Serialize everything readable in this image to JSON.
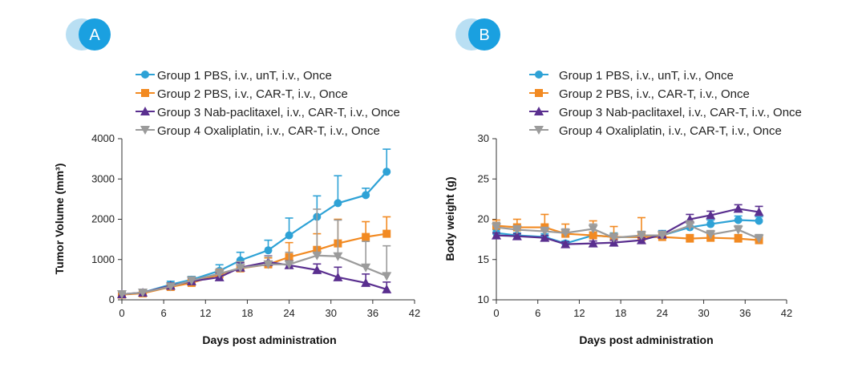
{
  "colors": {
    "group1": "#2ea2d6",
    "group2": "#f28a22",
    "group3": "#5a2f8f",
    "group4": "#9b9b9b",
    "badge_main": "#1aa0e0",
    "badge_shadow": "#b9dff3"
  },
  "panels": [
    {
      "badge": "A",
      "legend": [
        "Group 1 PBS, i.v., unT, i.v., Once",
        "Group 2 PBS, i.v., CAR-T, i.v., Once",
        "Group 3 Nab-paclitaxel, i.v., CAR-T, i.v., Once",
        "Group 4 Oxaliplatin, i.v., CAR-T, i.v., Once"
      ]
    },
    {
      "badge": "B",
      "legend": [
        "Group 1 PBS, i.v., unT, i.v., Once",
        "Group 2 PBS, i.v., CAR-T, i.v., Once",
        "Group 3 Nab-paclitaxel, i.v., CAR-T, i.v., Once",
        "Group 4 Oxaliplatin, i.v., CAR-T, i.v., Once"
      ]
    }
  ],
  "chart_data": [
    {
      "type": "line",
      "title": "",
      "xlabel": "Days post administration",
      "ylabel": "Tumor Volume (mm³)",
      "xlim": [
        0,
        42
      ],
      "ylim": [
        0,
        4000
      ],
      "xticks": [
        0,
        6,
        12,
        18,
        24,
        30,
        36,
        42
      ],
      "yticks": [
        0,
        1000,
        2000,
        3000,
        4000
      ],
      "x": [
        0,
        3,
        7,
        10,
        14,
        17,
        21,
        24,
        28,
        31,
        35,
        38
      ],
      "series": [
        {
          "name": "Group 1 PBS, i.v., unT, i.v., Once",
          "marker": "circle",
          "colorKey": "group1",
          "values": [
            130,
            180,
            380,
            500,
            720,
            980,
            1230,
            1600,
            2060,
            2400,
            2600,
            3180
          ],
          "errors": [
            60,
            70,
            80,
            80,
            150,
            200,
            250,
            430,
            520,
            680,
            170,
            560
          ]
        },
        {
          "name": "Group 2 PBS, i.v., CAR-T, i.v., Once",
          "marker": "square",
          "colorKey": "group2",
          "values": [
            130,
            160,
            320,
            420,
            630,
            780,
            880,
            1060,
            1240,
            1400,
            1560,
            1640
          ],
          "errors": [
            50,
            60,
            70,
            80,
            110,
            140,
            160,
            360,
            400,
            600,
            380,
            420
          ]
        },
        {
          "name": "Group 3 Nab-paclitaxel, i.v., CAR-T, i.v., Once",
          "marker": "triangle-up",
          "colorKey": "group3",
          "values": [
            140,
            180,
            350,
            460,
            560,
            800,
            940,
            860,
            740,
            560,
            420,
            260
          ],
          "errors": [
            50,
            60,
            70,
            80,
            100,
            120,
            150,
            110,
            150,
            250,
            220,
            180
          ]
        },
        {
          "name": "Group 4 Oxaliplatin, i.v., CAR-T, i.v., Once",
          "marker": "triangle-down",
          "colorKey": "group4",
          "values": [
            140,
            180,
            330,
            480,
            650,
            790,
            880,
            880,
            1100,
            1080,
            800,
            590
          ],
          "errors": [
            50,
            60,
            70,
            90,
            120,
            160,
            200,
            300,
            1150,
            900,
            650,
            750
          ]
        }
      ]
    },
    {
      "type": "line",
      "title": "",
      "xlabel": "Days post administration",
      "ylabel": "Body weight (g)",
      "xlim": [
        0,
        42
      ],
      "ylim": [
        10,
        30
      ],
      "xticks": [
        0,
        6,
        12,
        18,
        24,
        30,
        36,
        42
      ],
      "yticks": [
        10,
        15,
        20,
        25,
        30
      ],
      "x": [
        0,
        3,
        7,
        10,
        14,
        17,
        21,
        24,
        28,
        31,
        35,
        38
      ],
      "series": [
        {
          "name": "Group 1 PBS, i.v., unT, i.v., Once",
          "marker": "circle",
          "colorKey": "group1",
          "values": [
            18.3,
            18.0,
            17.8,
            17.0,
            18.0,
            17.8,
            17.8,
            18.0,
            19.0,
            19.4,
            19.9,
            19.8
          ],
          "errors": [
            0.4,
            0.3,
            0.4,
            0.3,
            0.4,
            0.5,
            0.5,
            0.6,
            0.6,
            0.5,
            0.5,
            0.5
          ]
        },
        {
          "name": "Group 2 PBS, i.v., CAR-T, i.v., Once",
          "marker": "square",
          "colorKey": "group2",
          "values": [
            19.2,
            19.0,
            19.0,
            18.2,
            18.0,
            17.8,
            17.8,
            17.8,
            17.6,
            17.7,
            17.6,
            17.4
          ],
          "errors": [
            0.7,
            1.0,
            1.6,
            1.2,
            1.8,
            1.3,
            2.4,
            0.6,
            0.5,
            0.4,
            0.5,
            0.5
          ]
        },
        {
          "name": "Group 3 Nab-paclitaxel, i.v., CAR-T, i.v., Once",
          "marker": "triangle-up",
          "colorKey": "group3",
          "values": [
            18.0,
            17.9,
            17.7,
            16.9,
            17.0,
            17.1,
            17.4,
            18.1,
            20.0,
            20.5,
            21.3,
            20.9
          ],
          "errors": [
            0.3,
            0.3,
            0.3,
            0.3,
            0.3,
            0.3,
            0.3,
            0.4,
            0.6,
            0.5,
            0.5,
            0.7
          ]
        },
        {
          "name": "Group 4 Oxaliplatin, i.v., CAR-T, i.v., Once",
          "marker": "triangle-down",
          "colorKey": "group4",
          "values": [
            19.0,
            18.7,
            18.5,
            18.3,
            18.8,
            17.7,
            18.0,
            18.0,
            19.2,
            18.1,
            18.7,
            17.6
          ],
          "errors": [
            0.6,
            0.5,
            0.5,
            0.5,
            0.6,
            0.5,
            0.5,
            0.5,
            0.6,
            0.5,
            0.5,
            0.5
          ]
        }
      ]
    }
  ]
}
